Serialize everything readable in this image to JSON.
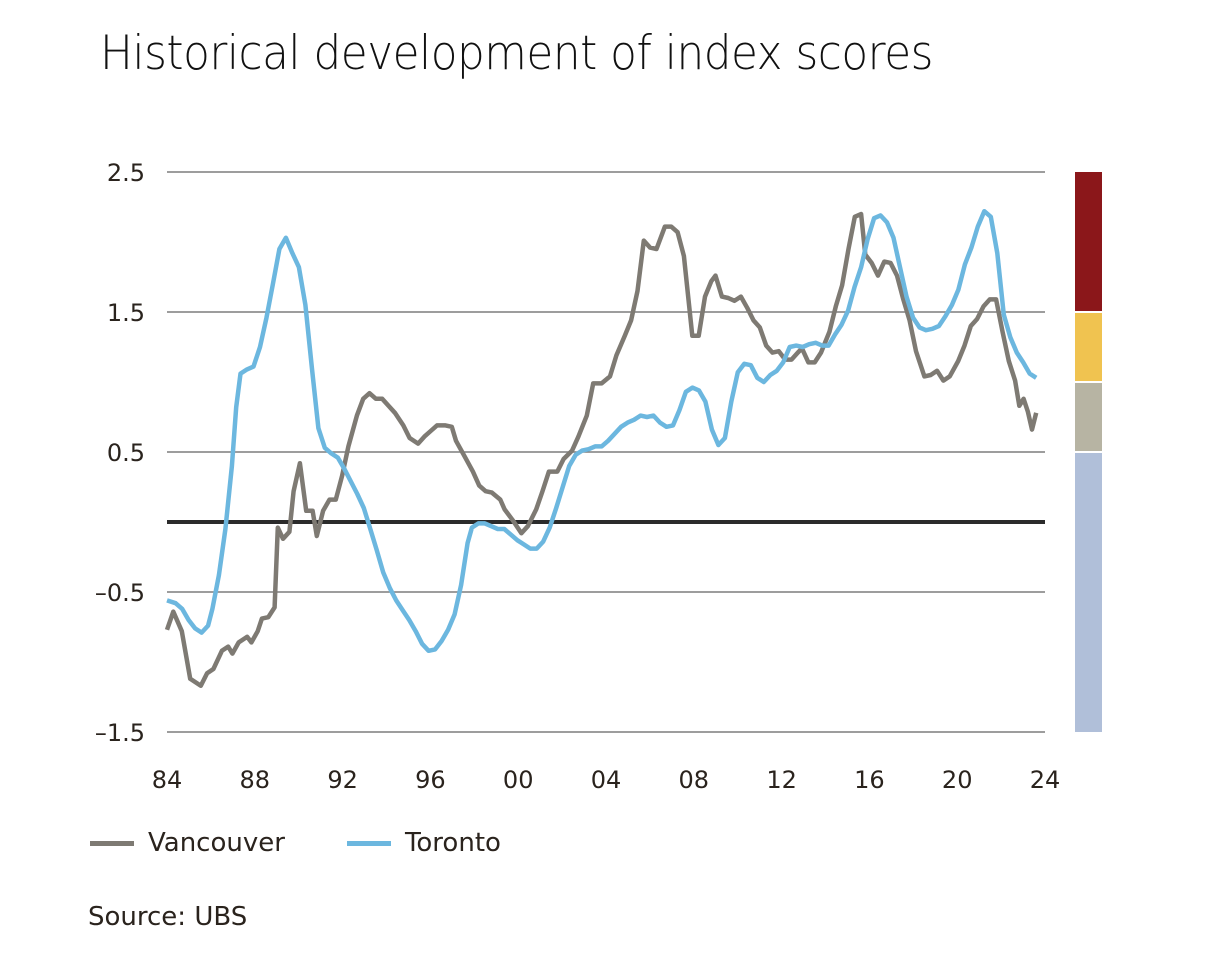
{
  "chart_data": {
    "type": "line",
    "title": "Historical development of index scores",
    "xlabel": "",
    "ylabel": "",
    "xlim": [
      1984,
      2024
    ],
    "ylim": [
      -1.5,
      2.5
    ],
    "grid": true,
    "legend_position": "bottom-left",
    "x_ticks": [
      {
        "value": 1984,
        "label": "84"
      },
      {
        "value": 1988,
        "label": "88"
      },
      {
        "value": 1992,
        "label": "92"
      },
      {
        "value": 1996,
        "label": "96"
      },
      {
        "value": 2000,
        "label": "00"
      },
      {
        "value": 2004,
        "label": "04"
      },
      {
        "value": 2008,
        "label": "08"
      },
      {
        "value": 2012,
        "label": "12"
      },
      {
        "value": 2016,
        "label": "16"
      },
      {
        "value": 2020,
        "label": "20"
      },
      {
        "value": 2024,
        "label": "24"
      }
    ],
    "y_ticks": [
      {
        "value": 2.5,
        "label": "2.5"
      },
      {
        "value": 1.5,
        "label": "1.5"
      },
      {
        "value": 0.5,
        "label": "0.5"
      },
      {
        "value": -0.5,
        "label": "–0.5"
      },
      {
        "value": -1.5,
        "label": "–1.5"
      }
    ],
    "zero_line": 0,
    "risk_bands": [
      {
        "from": 1.5,
        "to": 2.5,
        "color": "#8b171a"
      },
      {
        "from": 1.0,
        "to": 1.5,
        "color": "#f0c350"
      },
      {
        "from": 0.5,
        "to": 1.0,
        "color": "#b7b4a3"
      },
      {
        "from": -1.5,
        "to": 0.5,
        "color": "#b0bfd9"
      }
    ],
    "series": [
      {
        "name": "Vancouver",
        "color": "#7e7a73",
        "points": [
          [
            1984.0,
            -0.77
          ],
          [
            1984.3,
            -0.64
          ],
          [
            1984.7,
            -0.78
          ],
          [
            1985.1,
            -1.12
          ],
          [
            1985.6,
            -1.17
          ],
          [
            1985.9,
            -1.08
          ],
          [
            1986.2,
            -1.05
          ],
          [
            1986.6,
            -0.92
          ],
          [
            1986.9,
            -0.89
          ],
          [
            1987.1,
            -0.94
          ],
          [
            1987.4,
            -0.86
          ],
          [
            1987.8,
            -0.82
          ],
          [
            1988.0,
            -0.86
          ],
          [
            1988.3,
            -0.78
          ],
          [
            1988.5,
            -0.69
          ],
          [
            1988.8,
            -0.68
          ],
          [
            1989.1,
            -0.61
          ],
          [
            1989.25,
            -0.04
          ],
          [
            1989.5,
            -0.12
          ],
          [
            1989.8,
            -0.07
          ],
          [
            1990.0,
            0.22
          ],
          [
            1990.3,
            0.42
          ],
          [
            1990.6,
            0.08
          ],
          [
            1990.9,
            0.08
          ],
          [
            1991.1,
            -0.1
          ],
          [
            1991.4,
            0.08
          ],
          [
            1991.7,
            0.16
          ],
          [
            1992.0,
            0.16
          ],
          [
            1992.3,
            0.33
          ],
          [
            1992.6,
            0.54
          ],
          [
            1993.0,
            0.76
          ],
          [
            1993.3,
            0.88
          ],
          [
            1993.6,
            0.92
          ],
          [
            1993.9,
            0.88
          ],
          [
            1994.2,
            0.88
          ],
          [
            1994.5,
            0.83
          ],
          [
            1994.8,
            0.78
          ],
          [
            1995.2,
            0.69
          ],
          [
            1995.5,
            0.6
          ],
          [
            1995.9,
            0.56
          ],
          [
            1996.2,
            0.61
          ],
          [
            1996.5,
            0.65
          ],
          [
            1996.8,
            0.69
          ],
          [
            1997.2,
            0.69
          ],
          [
            1997.5,
            0.68
          ],
          [
            1997.7,
            0.58
          ],
          [
            1998.1,
            0.47
          ],
          [
            1998.5,
            0.36
          ],
          [
            1998.8,
            0.26
          ],
          [
            1999.1,
            0.22
          ],
          [
            1999.4,
            0.21
          ],
          [
            1999.8,
            0.16
          ],
          [
            2000.0,
            0.09
          ],
          [
            2000.4,
            0.01
          ],
          [
            2000.8,
            -0.08
          ],
          [
            2001.1,
            -0.03
          ],
          [
            2001.5,
            0.09
          ],
          [
            2001.8,
            0.22
          ],
          [
            2002.1,
            0.36
          ],
          [
            2002.5,
            0.36
          ],
          [
            2002.8,
            0.45
          ],
          [
            2003.2,
            0.51
          ],
          [
            2003.5,
            0.61
          ],
          [
            2003.9,
            0.76
          ],
          [
            2004.2,
            0.99
          ],
          [
            2004.6,
            0.99
          ],
          [
            2005.0,
            1.04
          ],
          [
            2005.3,
            1.19
          ],
          [
            2005.7,
            1.33
          ],
          [
            2006.0,
            1.44
          ],
          [
            2006.3,
            1.65
          ],
          [
            2006.6,
            2.01
          ],
          [
            2006.9,
            1.96
          ],
          [
            2007.2,
            1.95
          ],
          [
            2007.6,
            2.11
          ],
          [
            2007.9,
            2.11
          ],
          [
            2008.2,
            2.07
          ],
          [
            2008.5,
            1.9
          ],
          [
            2008.9,
            1.33
          ],
          [
            2009.2,
            1.33
          ],
          [
            2009.5,
            1.61
          ],
          [
            2009.8,
            1.72
          ],
          [
            2010.0,
            1.76
          ],
          [
            2010.3,
            1.61
          ],
          [
            2010.6,
            1.6
          ],
          [
            2010.9,
            1.58
          ],
          [
            2011.2,
            1.61
          ],
          [
            2011.5,
            1.53
          ],
          [
            2011.8,
            1.44
          ],
          [
            2012.1,
            1.39
          ],
          [
            2012.4,
            1.26
          ],
          [
            2012.7,
            1.21
          ],
          [
            2013.0,
            1.22
          ],
          [
            2013.3,
            1.16
          ],
          [
            2013.6,
            1.16
          ],
          [
            2013.9,
            1.21
          ],
          [
            2014.1,
            1.24
          ],
          [
            2014.4,
            1.14
          ],
          [
            2014.7,
            1.14
          ],
          [
            2015.0,
            1.21
          ],
          [
            2015.4,
            1.36
          ],
          [
            2015.7,
            1.54
          ],
          [
            2016.0,
            1.69
          ],
          [
            2016.3,
            1.95
          ],
          [
            2016.6,
            2.18
          ],
          [
            2016.9,
            2.2
          ],
          [
            2017.1,
            1.91
          ],
          [
            2017.4,
            1.85
          ],
          [
            2017.7,
            1.76
          ],
          [
            2018.0,
            1.86
          ],
          [
            2018.3,
            1.85
          ],
          [
            2018.6,
            1.76
          ],
          [
            2018.9,
            1.59
          ],
          [
            2019.2,
            1.44
          ],
          [
            2019.5,
            1.22
          ],
          [
            2019.9,
            1.04
          ],
          [
            2020.2,
            1.05
          ],
          [
            2020.5,
            1.08
          ],
          [
            2020.8,
            1.01
          ],
          [
            2021.1,
            1.04
          ],
          [
            2021.5,
            1.15
          ],
          [
            2021.8,
            1.26
          ],
          [
            2022.1,
            1.4
          ],
          [
            2022.4,
            1.45
          ],
          [
            2022.7,
            1.54
          ],
          [
            2023.0,
            1.59
          ],
          [
            2023.3,
            1.59
          ],
          [
            2023.6,
            1.36
          ],
          [
            2023.9,
            1.15
          ],
          [
            2024.2,
            1.01
          ],
          [
            2024.4,
            0.83
          ],
          [
            2024.6,
            0.88
          ],
          [
            2024.8,
            0.79
          ],
          [
            2025.0,
            0.66
          ],
          [
            2025.2,
            0.78
          ]
        ]
      },
      {
        "name": "Toronto",
        "color": "#6cb7df",
        "points": [
          [
            1984.0,
            -0.56
          ],
          [
            1984.4,
            -0.58
          ],
          [
            1984.7,
            -0.62
          ],
          [
            1985.0,
            -0.7
          ],
          [
            1985.3,
            -0.76
          ],
          [
            1985.6,
            -0.79
          ],
          [
            1985.9,
            -0.74
          ],
          [
            1986.1,
            -0.62
          ],
          [
            1986.4,
            -0.38
          ],
          [
            1986.7,
            -0.05
          ],
          [
            1987.0,
            0.4
          ],
          [
            1987.2,
            0.82
          ],
          [
            1987.4,
            1.06
          ],
          [
            1987.7,
            1.09
          ],
          [
            1988.0,
            1.11
          ],
          [
            1988.3,
            1.25
          ],
          [
            1988.6,
            1.46
          ],
          [
            1988.9,
            1.7
          ],
          [
            1989.2,
            1.95
          ],
          [
            1989.5,
            2.03
          ],
          [
            1989.8,
            1.92
          ],
          [
            1990.1,
            1.82
          ],
          [
            1990.4,
            1.55
          ],
          [
            1990.7,
            1.1
          ],
          [
            1991.0,
            0.67
          ],
          [
            1991.3,
            0.53
          ],
          [
            1991.6,
            0.49
          ],
          [
            1991.9,
            0.46
          ],
          [
            1992.2,
            0.38
          ],
          [
            1992.5,
            0.29
          ],
          [
            1992.8,
            0.2
          ],
          [
            1993.1,
            0.1
          ],
          [
            1993.4,
            -0.05
          ],
          [
            1993.7,
            -0.2
          ],
          [
            1994.0,
            -0.36
          ],
          [
            1994.3,
            -0.47
          ],
          [
            1994.6,
            -0.56
          ],
          [
            1994.9,
            -0.63
          ],
          [
            1995.2,
            -0.7
          ],
          [
            1995.5,
            -0.78
          ],
          [
            1995.8,
            -0.87
          ],
          [
            1996.1,
            -0.92
          ],
          [
            1996.4,
            -0.91
          ],
          [
            1996.7,
            -0.85
          ],
          [
            1997.0,
            -0.77
          ],
          [
            1997.3,
            -0.66
          ],
          [
            1997.6,
            -0.45
          ],
          [
            1997.9,
            -0.15
          ],
          [
            1998.1,
            -0.04
          ],
          [
            1998.4,
            -0.01
          ],
          [
            1998.7,
            -0.01
          ],
          [
            1999.0,
            -0.03
          ],
          [
            1999.3,
            -0.05
          ],
          [
            1999.6,
            -0.05
          ],
          [
            1999.9,
            -0.09
          ],
          [
            2000.2,
            -0.13
          ],
          [
            2000.5,
            -0.16
          ],
          [
            2000.8,
            -0.19
          ],
          [
            2001.1,
            -0.19
          ],
          [
            2001.4,
            -0.14
          ],
          [
            2001.7,
            -0.04
          ],
          [
            2002.0,
            0.1
          ],
          [
            2002.3,
            0.25
          ],
          [
            2002.6,
            0.4
          ],
          [
            2002.9,
            0.48
          ],
          [
            2003.2,
            0.51
          ],
          [
            2003.5,
            0.52
          ],
          [
            2003.8,
            0.54
          ],
          [
            2004.1,
            0.54
          ],
          [
            2004.4,
            0.58
          ],
          [
            2004.7,
            0.63
          ],
          [
            2005.0,
            0.68
          ],
          [
            2005.3,
            0.71
          ],
          [
            2005.6,
            0.73
          ],
          [
            2005.9,
            0.76
          ],
          [
            2006.2,
            0.75
          ],
          [
            2006.5,
            0.76
          ],
          [
            2006.8,
            0.71
          ],
          [
            2007.1,
            0.68
          ],
          [
            2007.4,
            0.69
          ],
          [
            2007.7,
            0.8
          ],
          [
            2008.0,
            0.93
          ],
          [
            2008.3,
            0.96
          ],
          [
            2008.6,
            0.94
          ],
          [
            2008.9,
            0.86
          ],
          [
            2009.2,
            0.66
          ],
          [
            2009.5,
            0.55
          ],
          [
            2009.8,
            0.6
          ],
          [
            2010.1,
            0.86
          ],
          [
            2010.4,
            1.07
          ],
          [
            2010.7,
            1.13
          ],
          [
            2011.0,
            1.12
          ],
          [
            2011.3,
            1.03
          ],
          [
            2011.6,
            1.0
          ],
          [
            2011.9,
            1.05
          ],
          [
            2012.2,
            1.08
          ],
          [
            2012.5,
            1.14
          ],
          [
            2012.8,
            1.25
          ],
          [
            2013.1,
            1.26
          ],
          [
            2013.4,
            1.25
          ],
          [
            2013.7,
            1.27
          ],
          [
            2014.0,
            1.28
          ],
          [
            2014.3,
            1.26
          ],
          [
            2014.6,
            1.26
          ],
          [
            2014.9,
            1.34
          ],
          [
            2015.2,
            1.41
          ],
          [
            2015.5,
            1.51
          ],
          [
            2015.8,
            1.68
          ],
          [
            2016.1,
            1.82
          ],
          [
            2016.4,
            2.02
          ],
          [
            2016.7,
            2.17
          ],
          [
            2017.0,
            2.19
          ],
          [
            2017.3,
            2.14
          ],
          [
            2017.6,
            2.03
          ],
          [
            2017.9,
            1.82
          ],
          [
            2018.2,
            1.61
          ],
          [
            2018.5,
            1.46
          ],
          [
            2018.8,
            1.39
          ],
          [
            2019.1,
            1.37
          ],
          [
            2019.4,
            1.38
          ],
          [
            2019.7,
            1.4
          ],
          [
            2020.0,
            1.47
          ],
          [
            2020.3,
            1.55
          ],
          [
            2020.6,
            1.66
          ],
          [
            2020.9,
            1.84
          ],
          [
            2021.2,
            1.96
          ],
          [
            2021.5,
            2.11
          ],
          [
            2021.8,
            2.22
          ],
          [
            2022.1,
            2.18
          ],
          [
            2022.4,
            1.92
          ],
          [
            2022.7,
            1.48
          ],
          [
            2023.0,
            1.32
          ],
          [
            2023.3,
            1.21
          ],
          [
            2023.6,
            1.14
          ],
          [
            2023.9,
            1.06
          ],
          [
            2024.2,
            1.03
          ]
        ]
      }
    ],
    "source": "Source: UBS"
  }
}
